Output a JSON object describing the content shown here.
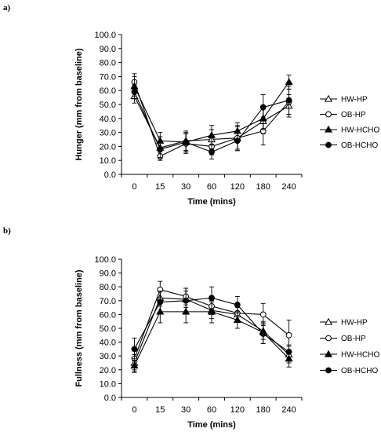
{
  "panels": [
    "a)",
    "b)"
  ],
  "chart_data": [
    {
      "type": "line",
      "ylabel": "Hunger (mm from baseline)",
      "xlabel": "Time (mins)",
      "categories": [
        "0",
        "15",
        "30",
        "60",
        "120",
        "180",
        "240"
      ],
      "ylim": [
        0,
        100
      ],
      "yticks": [
        "0.0",
        "10.0",
        "20.0",
        "30.0",
        "40.0",
        "50.0",
        "60.0",
        "70.0",
        "80.0",
        "90.0",
        "100.0"
      ],
      "series": [
        {
          "name": "HW-HP",
          "marker": "triangle-open",
          "values": [
            56,
            19,
            24,
            25,
            26,
            38,
            49
          ],
          "err": [
            5,
            8,
            7,
            7,
            8,
            9,
            8
          ]
        },
        {
          "name": "OB-HP",
          "marker": "circle-open",
          "values": [
            66,
            13,
            22,
            20,
            26,
            31,
            52
          ],
          "err": [
            6,
            3,
            7,
            6,
            9,
            10,
            9
          ]
        },
        {
          "name": "HW-HCHO",
          "marker": "triangle-filled",
          "values": [
            63,
            24,
            23,
            28,
            31,
            40,
            66
          ],
          "err": [
            7,
            6,
            6,
            7,
            6,
            8,
            5
          ]
        },
        {
          "name": "OB-HCHO",
          "marker": "circle-filled",
          "values": [
            59,
            18,
            23,
            16,
            24,
            48,
            53
          ],
          "err": [
            5,
            6,
            7,
            5,
            7,
            9,
            10
          ]
        }
      ]
    },
    {
      "type": "line",
      "ylabel": "Fullness (mm from baseline)",
      "xlabel": "Time (mins)",
      "categories": [
        "0",
        "15",
        "30",
        "60",
        "120",
        "180",
        "240"
      ],
      "ylim": [
        0,
        100
      ],
      "yticks": [
        "0.0",
        "10.0",
        "20.0",
        "30.0",
        "40.0",
        "50.0",
        "60.0",
        "70.0",
        "80.0",
        "90.0",
        "100.0"
      ],
      "series": [
        {
          "name": "HW-HP",
          "marker": "triangle-open",
          "values": [
            25,
            72,
            71,
            63,
            60,
            48,
            31
          ],
          "err": [
            6,
            6,
            6,
            6,
            5,
            6,
            6
          ]
        },
        {
          "name": "OB-HP",
          "marker": "circle-open",
          "values": [
            28,
            78,
            73,
            66,
            61,
            60,
            45
          ],
          "err": [
            8,
            6,
            6,
            6,
            5,
            8,
            11
          ]
        },
        {
          "name": "HW-HCHO",
          "marker": "triangle-filled",
          "values": [
            23,
            62,
            62,
            62,
            56,
            47,
            28
          ],
          "err": [
            5,
            8,
            8,
            8,
            6,
            8,
            6
          ]
        },
        {
          "name": "OB-HCHO",
          "marker": "circle-filled",
          "values": [
            35,
            69,
            70,
            72,
            67,
            46,
            33
          ],
          "err": [
            8,
            8,
            9,
            8,
            6,
            7,
            5
          ]
        }
      ]
    }
  ]
}
